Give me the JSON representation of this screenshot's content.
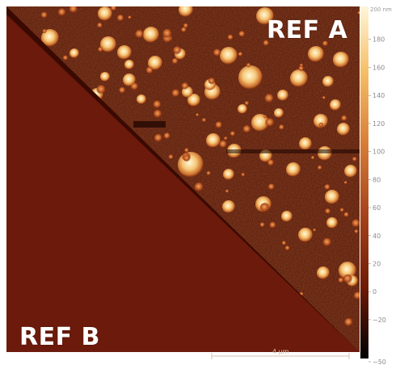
{
  "labels": {
    "ref_a": "REF A",
    "ref_b": "REF B"
  },
  "scale_bar": {
    "label": "4 µm"
  },
  "colorbar": {
    "unit": "nm",
    "max_label": "200 nm",
    "ticks": [
      180,
      160,
      140,
      120,
      100,
      80,
      60,
      40,
      20,
      0,
      -20,
      -50
    ],
    "gradient_colors": [
      "#fff6d8",
      "#f7c06a",
      "#d9803a",
      "#a8461c",
      "#6e1a05",
      "#000000"
    ]
  },
  "colors": {
    "solid_triangle": "#6c1a0b",
    "background_dark": "#3a0a02",
    "panel_border": "#ffffff"
  }
}
